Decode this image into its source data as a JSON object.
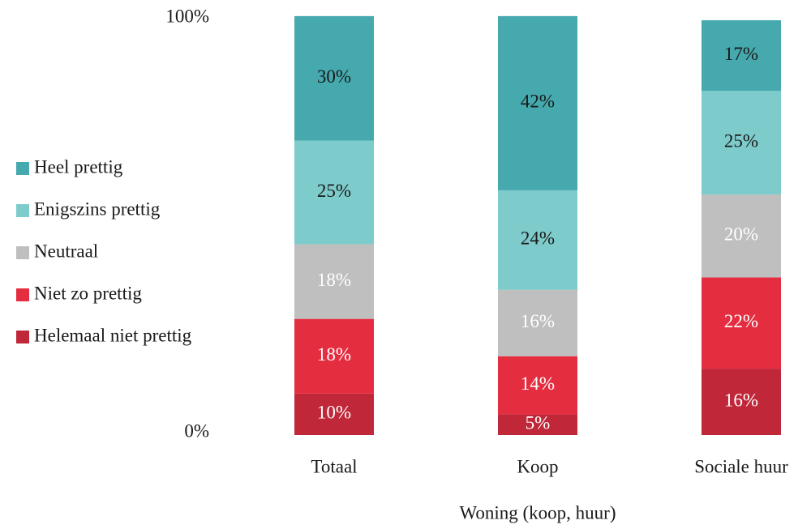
{
  "chart_data": {
    "type": "stacked_bar",
    "x_label": "Woning (koop, huur)",
    "categories": [
      "Totaal",
      "Koop",
      "Sociale huur"
    ],
    "series": [
      {
        "name": "Helemaal niet prettig",
        "color": "#c0283a",
        "label_color": "#ffffff",
        "values": [
          10,
          5,
          16
        ],
        "value_labels": [
          "10%",
          "5%",
          "16%"
        ]
      },
      {
        "name": "Niet zo prettig",
        "color": "#e52d40",
        "label_color": "#ffffff",
        "values": [
          18,
          14,
          22
        ],
        "value_labels": [
          "18%",
          "14%",
          "22%"
        ]
      },
      {
        "name": "Neutraal",
        "color": "#bfbfbf",
        "label_color": "#ffffff",
        "values": [
          18,
          16,
          20
        ],
        "value_labels": [
          "18%",
          "16%",
          "20%"
        ]
      },
      {
        "name": "Enigszins prettig",
        "color": "#7ecbcc",
        "label_color": "#1a1a1a",
        "values": [
          25,
          24,
          25
        ],
        "value_labels": [
          "25%",
          "24%",
          "25%"
        ]
      },
      {
        "name": "Heel prettig",
        "color": "#45a9ae",
        "label_color": "#1a1a1a",
        "values": [
          30,
          42,
          17
        ],
        "value_labels": [
          "30%",
          "42%",
          "17%"
        ]
      }
    ],
    "ylim": [
      0,
      100
    ],
    "yticks": [
      {
        "value": 0,
        "label": "0%"
      },
      {
        "value": 100,
        "label": "100%"
      }
    ],
    "grid": false,
    "legend": "left"
  }
}
